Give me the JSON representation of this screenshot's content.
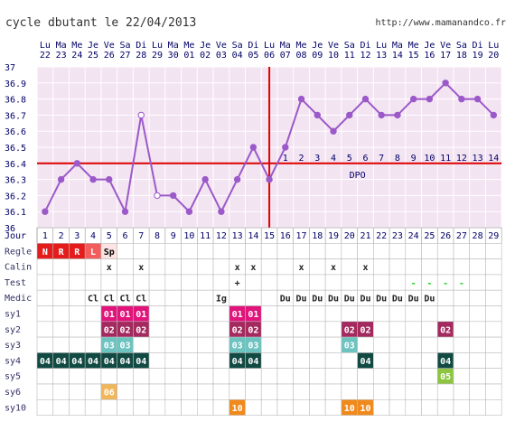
{
  "title": "cycle dbutant le 22/04/2013",
  "url": "http://www.mamanandco.fr",
  "colors": {
    "background": "#f3e4f2",
    "grid": "#ffffff",
    "temp_line": "#9b59c9",
    "coverline": "#dd0000",
    "ovulation_line": "#dd0000"
  },
  "date_headers": [
    [
      "Lu",
      "22"
    ],
    [
      "Ma",
      "23"
    ],
    [
      "Me",
      "24"
    ],
    [
      "Je",
      "25"
    ],
    [
      "Ve",
      "26"
    ],
    [
      "Sa",
      "27"
    ],
    [
      "Di",
      "28"
    ],
    [
      "Lu",
      "29"
    ],
    [
      "Ma",
      "30"
    ],
    [
      "Me",
      "01"
    ],
    [
      "Je",
      "02"
    ],
    [
      "Ve",
      "03"
    ],
    [
      "Sa",
      "04"
    ],
    [
      "Di",
      "05"
    ],
    [
      "Lu",
      "06"
    ],
    [
      "Ma",
      "07"
    ],
    [
      "Me",
      "08"
    ],
    [
      "Je",
      "09"
    ],
    [
      "Ve",
      "10"
    ],
    [
      "Sa",
      "11"
    ],
    [
      "Di",
      "12"
    ],
    [
      "Lu",
      "13"
    ],
    [
      "Ma",
      "14"
    ],
    [
      "Me",
      "15"
    ],
    [
      "Je",
      "16"
    ],
    [
      "Ve",
      "17"
    ],
    [
      "Sa",
      "18"
    ],
    [
      "Di",
      "19"
    ],
    [
      "Lu",
      "20"
    ]
  ],
  "chart_data": {
    "type": "line",
    "x": [
      1,
      2,
      3,
      4,
      5,
      6,
      7,
      8,
      9,
      10,
      11,
      12,
      13,
      14,
      15,
      16,
      17,
      18,
      19,
      20,
      21,
      22,
      23,
      24,
      25,
      26,
      27,
      28,
      29
    ],
    "values": [
      36.1,
      36.3,
      36.4,
      36.3,
      36.3,
      36.1,
      36.7,
      36.2,
      36.2,
      36.1,
      36.3,
      36.1,
      36.3,
      36.5,
      36.3,
      36.5,
      36.8,
      36.7,
      36.6,
      36.7,
      36.8,
      36.7,
      36.7,
      36.8,
      36.8,
      36.9,
      36.8,
      36.8,
      36.7
    ],
    "hollow_points": [
      7,
      8
    ],
    "ylim": [
      36.0,
      37.0
    ],
    "yticks": [
      "37",
      "36.9",
      "36.8",
      "36.7",
      "36.6",
      "36.5",
      "36.4",
      "36.3",
      "36.2",
      "36.1",
      "36"
    ],
    "coverline": 36.4,
    "ovulation_after_day": 15,
    "post_ovulation_labels": [
      "1",
      "2",
      "3",
      "4",
      "5",
      "6",
      "7",
      "8",
      "9",
      "10",
      "11",
      "12",
      "13",
      "14"
    ],
    "dpo_label": "DPO",
    "xlabel": "Jour"
  },
  "rows": [
    {
      "label": "Regle",
      "cells": {
        "1": {
          "t": "N",
          "bg": "#e51c1c",
          "fg": "#ffffff"
        },
        "2": {
          "t": "R",
          "bg": "#e51c1c",
          "fg": "#ffffff"
        },
        "3": {
          "t": "R",
          "bg": "#e51c1c",
          "fg": "#ffffff"
        },
        "4": {
          "t": "L",
          "bg": "#f25c5c",
          "fg": "#ffffff"
        },
        "5": {
          "t": "Sp",
          "bg": "#fde3e3",
          "fg": "#000000"
        }
      }
    },
    {
      "label": "Calin",
      "cells": {
        "5": {
          "t": "x"
        },
        "7": {
          "t": "x"
        },
        "13": {
          "t": "x"
        },
        "14": {
          "t": "x"
        },
        "17": {
          "t": "x"
        },
        "19": {
          "t": "x"
        },
        "21": {
          "t": "x"
        }
      }
    },
    {
      "label": "Test",
      "cells": {
        "13": {
          "t": "+"
        },
        "24": {
          "t": "-",
          "fg": "#22cc22"
        },
        "25": {
          "t": "-",
          "fg": "#22cc22"
        },
        "26": {
          "t": "-",
          "fg": "#22cc22"
        },
        "27": {
          "t": "-",
          "fg": "#22cc22"
        }
      }
    },
    {
      "label": "Medic",
      "cells": {
        "4": {
          "t": "Cl"
        },
        "5": {
          "t": "Cl"
        },
        "6": {
          "t": "Cl"
        },
        "7": {
          "t": "Cl"
        },
        "12": {
          "t": "Ig"
        },
        "16": {
          "t": "Du"
        },
        "17": {
          "t": "Du"
        },
        "18": {
          "t": "Du"
        },
        "19": {
          "t": "Du"
        },
        "20": {
          "t": "Du"
        },
        "21": {
          "t": "Du"
        },
        "22": {
          "t": "Du"
        },
        "23": {
          "t": "Du"
        },
        "24": {
          "t": "Du"
        },
        "25": {
          "t": "Du"
        }
      }
    },
    {
      "label": "sy1",
      "cells": {
        "5": {
          "t": "01",
          "bg": "#e0147a",
          "fg": "#ffffff"
        },
        "6": {
          "t": "01",
          "bg": "#e0147a",
          "fg": "#ffffff"
        },
        "7": {
          "t": "01",
          "bg": "#e0147a",
          "fg": "#ffffff"
        },
        "13": {
          "t": "01",
          "bg": "#e0147a",
          "fg": "#ffffff"
        },
        "14": {
          "t": "01",
          "bg": "#e0147a",
          "fg": "#ffffff"
        }
      }
    },
    {
      "label": "sy2",
      "cells": {
        "5": {
          "t": "02",
          "bg": "#a3295e",
          "fg": "#ffffff"
        },
        "6": {
          "t": "02",
          "bg": "#a3295e",
          "fg": "#ffffff"
        },
        "7": {
          "t": "02",
          "bg": "#a3295e",
          "fg": "#ffffff"
        },
        "13": {
          "t": "02",
          "bg": "#a3295e",
          "fg": "#ffffff"
        },
        "14": {
          "t": "02",
          "bg": "#a3295e",
          "fg": "#ffffff"
        },
        "20": {
          "t": "02",
          "bg": "#a3295e",
          "fg": "#ffffff"
        },
        "21": {
          "t": "02",
          "bg": "#a3295e",
          "fg": "#ffffff"
        },
        "26": {
          "t": "02",
          "bg": "#a3295e",
          "fg": "#ffffff"
        }
      }
    },
    {
      "label": "sy3",
      "cells": {
        "5": {
          "t": "03",
          "bg": "#6cc3c0",
          "fg": "#ffffff"
        },
        "6": {
          "t": "03",
          "bg": "#6cc3c0",
          "fg": "#ffffff"
        },
        "13": {
          "t": "03",
          "bg": "#6cc3c0",
          "fg": "#ffffff"
        },
        "14": {
          "t": "03",
          "bg": "#6cc3c0",
          "fg": "#ffffff"
        },
        "20": {
          "t": "03",
          "bg": "#6cc3c0",
          "fg": "#ffffff"
        }
      }
    },
    {
      "label": "sy4",
      "cells": {
        "1": {
          "t": "04",
          "bg": "#114a43",
          "fg": "#ffffff"
        },
        "2": {
          "t": "04",
          "bg": "#114a43",
          "fg": "#ffffff"
        },
        "3": {
          "t": "04",
          "bg": "#114a43",
          "fg": "#ffffff"
        },
        "4": {
          "t": "04",
          "bg": "#114a43",
          "fg": "#ffffff"
        },
        "5": {
          "t": "04",
          "bg": "#114a43",
          "fg": "#ffffff"
        },
        "6": {
          "t": "04",
          "bg": "#114a43",
          "fg": "#ffffff"
        },
        "7": {
          "t": "04",
          "bg": "#114a43",
          "fg": "#ffffff"
        },
        "13": {
          "t": "04",
          "bg": "#114a43",
          "fg": "#ffffff"
        },
        "14": {
          "t": "04",
          "bg": "#114a43",
          "fg": "#ffffff"
        },
        "21": {
          "t": "04",
          "bg": "#114a43",
          "fg": "#ffffff"
        },
        "26": {
          "t": "04",
          "bg": "#114a43",
          "fg": "#ffffff"
        }
      }
    },
    {
      "label": "sy5",
      "cells": {
        "26": {
          "t": "05",
          "bg": "#8cc63f",
          "fg": "#ffffff"
        }
      }
    },
    {
      "label": "sy6",
      "cells": {
        "5": {
          "t": "06",
          "bg": "#f2b65a",
          "fg": "#ffffff"
        }
      }
    },
    {
      "label": "sy10",
      "cells": {
        "13": {
          "t": "10",
          "bg": "#f08a1c",
          "fg": "#ffffff"
        },
        "20": {
          "t": "10",
          "bg": "#f08a1c",
          "fg": "#ffffff"
        },
        "21": {
          "t": "10",
          "bg": "#f08a1c",
          "fg": "#ffffff"
        }
      }
    }
  ]
}
